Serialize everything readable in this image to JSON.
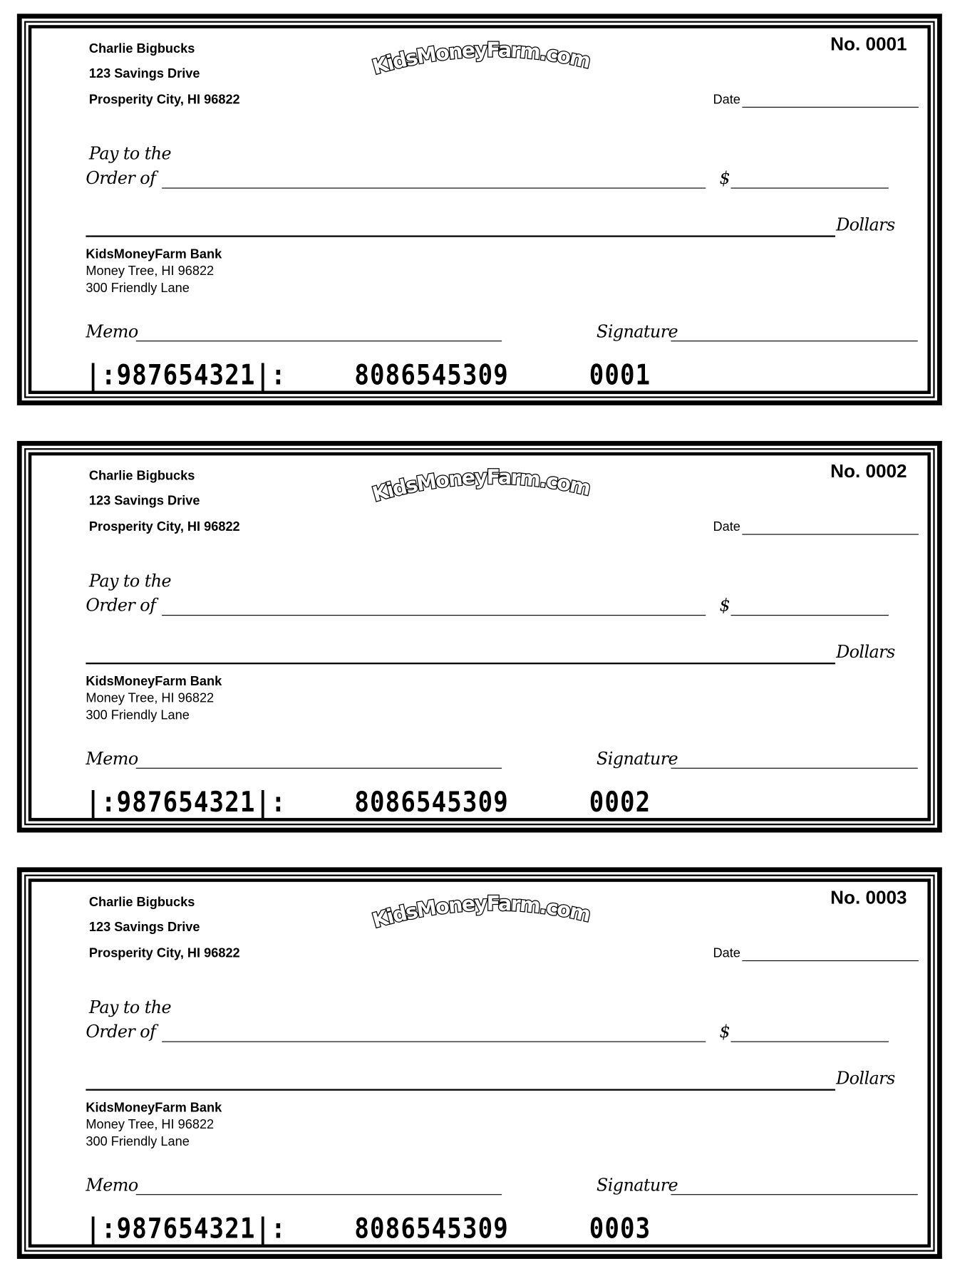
{
  "checks": [
    {
      "number_label": "No. 0001",
      "account_holder": {
        "name": "Charlie Bigbucks",
        "street": "123 Savings Drive",
        "city": "Prosperity City, HI 96822"
      },
      "logo_text": "KidsMoneyFarm.com",
      "date_label": "Date",
      "pay_to_label_1": "Pay to the",
      "pay_to_label_2": "Order of",
      "dollar_sign": "$",
      "dollars_label": "Dollars",
      "bank": {
        "name": "KidsMoneyFarm Bank",
        "city": "Money Tree, HI 96822",
        "street": "300 Friendly Lane"
      },
      "memo_label": "Memo",
      "signature_label": "Signature",
      "micr": {
        "routing": "|:987654321|:",
        "account": "8086545309",
        "check_number": "0001"
      }
    },
    {
      "number_label": "No. 0002",
      "account_holder": {
        "name": "Charlie Bigbucks",
        "street": "123 Savings Drive",
        "city": "Prosperity City, HI 96822"
      },
      "logo_text": "KidsMoneyFarm.com",
      "date_label": "Date",
      "pay_to_label_1": "Pay to the",
      "pay_to_label_2": "Order of",
      "dollar_sign": "$",
      "dollars_label": "Dollars",
      "bank": {
        "name": "KidsMoneyFarm Bank",
        "city": "Money Tree, HI 96822",
        "street": "300 Friendly Lane"
      },
      "memo_label": "Memo",
      "signature_label": "Signature",
      "micr": {
        "routing": "|:987654321|:",
        "account": "8086545309",
        "check_number": "0002"
      }
    },
    {
      "number_label": "No. 0003",
      "account_holder": {
        "name": "Charlie Bigbucks",
        "street": "123 Savings Drive",
        "city": "Prosperity City, HI 96822"
      },
      "logo_text": "KidsMoneyFarm.com",
      "date_label": "Date",
      "pay_to_label_1": "Pay to the",
      "pay_to_label_2": "Order of",
      "dollar_sign": "$",
      "dollars_label": "Dollars",
      "bank": {
        "name": "KidsMoneyFarm Bank",
        "city": "Money Tree, HI 96822",
        "street": "300 Friendly Lane"
      },
      "memo_label": "Memo",
      "signature_label": "Signature",
      "micr": {
        "routing": "|:987654321|:",
        "account": "8086545309",
        "check_number": "0003"
      }
    }
  ]
}
